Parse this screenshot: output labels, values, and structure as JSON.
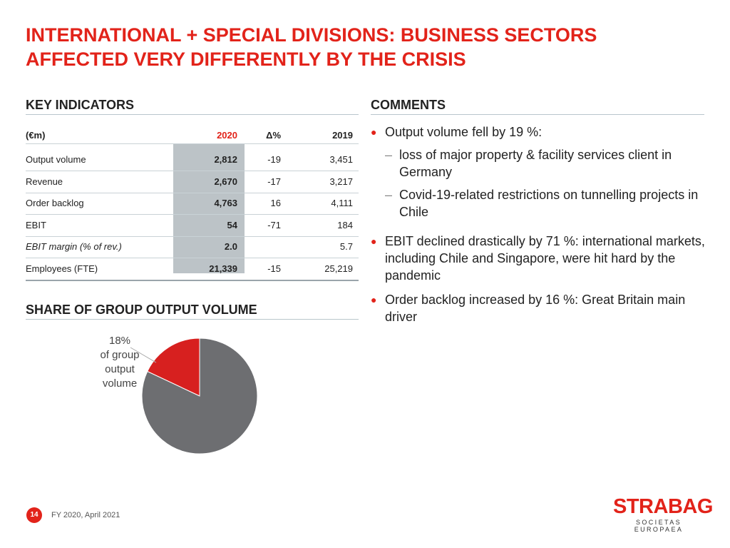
{
  "header": {
    "title": "INTERNATIONAL + SPECIAL DIVISIONS: BUSINESS SECTORS AFFECTED VERY DIFFERENTLY BY THE CRISIS"
  },
  "key_indicators": {
    "heading": "KEY INDICATORS",
    "table": {
      "columns": [
        "(€m)",
        "2020",
        "Δ%",
        "2019"
      ],
      "rows": [
        [
          "Output volume",
          "2,812",
          "-19",
          "3,451"
        ],
        [
          "Revenue",
          "2,670",
          "-17",
          "3,217"
        ],
        [
          "Order backlog",
          "4,763",
          "16",
          "4,111"
        ],
        [
          "EBIT",
          "54",
          "-71",
          "184"
        ],
        [
          "EBIT margin (% of rev.)",
          "2.0",
          null,
          "5.7"
        ],
        [
          "Employees (FTE)",
          "21,339",
          "-15",
          "25,219"
        ]
      ]
    }
  },
  "share": {
    "heading": "SHARE OF GROUP OUTPUT VOLUME"
  },
  "chart_data": {
    "type": "pie",
    "values": [
      18,
      82
    ],
    "value_labels": [
      "18%",
      null
    ],
    "annotation": "of group output volume",
    "colors": [
      "#d7201f",
      "#6d6e71"
    ]
  },
  "comments": {
    "heading": "COMMENTS",
    "items": [
      {
        "text": "Output volume fell by 19 %:",
        "subitems": [
          "loss of major property & facility services client in Germany",
          "Covid-19-related restrictions on tunnelling projects in Chile"
        ]
      },
      {
        "text": "EBIT declined drastically by 71 %: international markets, including Chile and Singapore, were hit hard by the pandemic",
        "subitems": []
      },
      {
        "text": "Order backlog increased by 16 %: Great Britain main driver",
        "subitems": []
      }
    ]
  },
  "footer": {
    "page": "14",
    "date": "FY 2020, April 2021",
    "logo": "STRABAG",
    "logo_subtitle": "SOCIETAS EUROPAEA"
  }
}
